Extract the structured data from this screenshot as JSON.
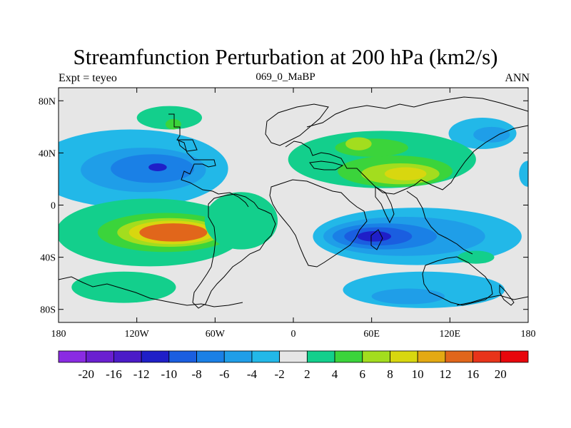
{
  "title": "Streamfunction Perturbation at 200 hPa (km2/s)",
  "left_subtitle": "Expt = teyeo",
  "center_subtitle": "069_0_MaBP",
  "right_subtitle": "ANN",
  "map": {
    "lon_range": [
      -180,
      180
    ],
    "lat_range": [
      -90,
      90
    ],
    "background_color": "#e6e6e6",
    "lat_ticks": [
      {
        "lat": 80,
        "label": "80N"
      },
      {
        "lat": 40,
        "label": "40N"
      },
      {
        "lat": 0,
        "label": "0"
      },
      {
        "lat": -40,
        "label": "40S"
      },
      {
        "lat": -80,
        "label": "80S"
      }
    ],
    "lon_ticks": [
      {
        "lon": -180,
        "label": "180"
      },
      {
        "lon": -120,
        "label": "120W"
      },
      {
        "lon": -60,
        "label": "60W"
      },
      {
        "lon": 0,
        "label": "0"
      },
      {
        "lon": 60,
        "label": "60E"
      },
      {
        "lon": 120,
        "label": "120E"
      },
      {
        "lon": 180,
        "label": "180"
      }
    ],
    "features": [
      {
        "name": "np-high-ridge",
        "lon": -95,
        "lat": 67,
        "rx": 25,
        "ry": 9,
        "level": 4
      },
      {
        "name": "np-high-core",
        "lon": -92,
        "lat": 62,
        "rx": 6,
        "ry": 4,
        "level": 6
      },
      {
        "name": "na-low-outer",
        "lon": -125,
        "lat": 28,
        "rx": 75,
        "ry": 30,
        "level": -4
      },
      {
        "name": "na-low-mid",
        "lon": -115,
        "lat": 27,
        "rx": 48,
        "ry": 17,
        "level": -6
      },
      {
        "name": "na-low-inner",
        "lon": -108,
        "lat": 28,
        "rx": 32,
        "ry": 11,
        "level": -8
      },
      {
        "name": "na-low-core",
        "lon": -104,
        "lat": 29,
        "rx": 7,
        "ry": 3,
        "level": -12
      },
      {
        "name": "asia-low-east",
        "lon": 145,
        "lat": 55,
        "rx": 26,
        "ry": 12,
        "level": -4
      },
      {
        "name": "asia-low-east-core",
        "lon": 152,
        "lat": 54,
        "rx": 14,
        "ry": 6,
        "level": -6
      },
      {
        "name": "dateline-low",
        "lon": 180,
        "lat": 24,
        "rx": 7,
        "ry": 10,
        "level": -4
      },
      {
        "name": "eurasia-high-outer",
        "lon": 68,
        "lat": 35,
        "rx": 72,
        "ry": 22,
        "level": 4
      },
      {
        "name": "eurasia-high-mid",
        "lon": 78,
        "lat": 26,
        "rx": 44,
        "ry": 12,
        "level": 6
      },
      {
        "name": "eurasia-high-north",
        "lon": 60,
        "lat": 44,
        "rx": 28,
        "ry": 7,
        "level": 6
      },
      {
        "name": "eurasia-high-inner",
        "lon": 82,
        "lat": 24,
        "rx": 30,
        "ry": 8,
        "level": 8
      },
      {
        "name": "eurasia-high-core",
        "lon": 86,
        "lat": 24,
        "rx": 16,
        "ry": 5,
        "level": 10
      },
      {
        "name": "europe-high-patch",
        "lon": 50,
        "lat": 47,
        "rx": 10,
        "ry": 5,
        "level": 8
      },
      {
        "name": "sp-high-outer",
        "lon": -110,
        "lat": -21,
        "rx": 72,
        "ry": 26,
        "level": 4
      },
      {
        "name": "sp-high-mid",
        "lon": -98,
        "lat": -21,
        "rx": 52,
        "ry": 15,
        "level": 6
      },
      {
        "name": "sp-high-inner",
        "lon": -95,
        "lat": -21,
        "rx": 40,
        "ry": 11,
        "level": 8
      },
      {
        "name": "sp-high-inner2",
        "lon": -93,
        "lat": -21,
        "rx": 33,
        "ry": 9,
        "level": 10
      },
      {
        "name": "sp-high-core",
        "lon": -92,
        "lat": -21,
        "rx": 26,
        "ry": 7,
        "level": 12
      },
      {
        "name": "atlantic-high-outer",
        "lon": -40,
        "lat": -12,
        "rx": 28,
        "ry": 22,
        "level": 4
      },
      {
        "name": "southern-high-west",
        "lon": -130,
        "lat": -63,
        "rx": 40,
        "ry": 12,
        "level": 4
      },
      {
        "name": "io-low-outer",
        "lon": 95,
        "lat": -24,
        "rx": 80,
        "ry": 22,
        "level": -4
      },
      {
        "name": "io-low-mid",
        "lon": 85,
        "lat": -24,
        "rx": 62,
        "ry": 15,
        "level": -6
      },
      {
        "name": "io-low-inner",
        "lon": 70,
        "lat": -24,
        "rx": 40,
        "ry": 10,
        "level": -8
      },
      {
        "name": "io-low-inner2",
        "lon": 65,
        "lat": -24,
        "rx": 26,
        "ry": 7,
        "level": -10
      },
      {
        "name": "io-low-core",
        "lon": 62,
        "lat": -24,
        "rx": 13,
        "ry": 4,
        "level": -12
      },
      {
        "name": "southern-low-east",
        "lon": 100,
        "lat": -65,
        "rx": 62,
        "ry": 14,
        "level": -4
      },
      {
        "name": "southern-low-east-mid",
        "lon": 88,
        "lat": -70,
        "rx": 28,
        "ry": 6,
        "level": -6
      },
      {
        "name": "southern-high-east",
        "lon": 140,
        "lat": -40,
        "rx": 14,
        "ry": 5,
        "level": 4
      }
    ]
  },
  "colorbar": {
    "colors": [
      "#8a2be2",
      "#6a1fd0",
      "#4b1bc8",
      "#1f1fc8",
      "#1a5ee0",
      "#1a80e6",
      "#1f9ee8",
      "#22b8e8",
      "#e6e6e6",
      "#13cf8c",
      "#3bd43b",
      "#a3dd1e",
      "#d8d70f",
      "#e3a913",
      "#e1661b",
      "#e8341a",
      "#e8060c"
    ],
    "labels": [
      "-20",
      "-16",
      "-12",
      "-10",
      "-8",
      "-6",
      "-4",
      "-2",
      "2",
      "4",
      "6",
      "8",
      "10",
      "12",
      "16",
      "20"
    ],
    "level_colors": {
      "-12": "#1f1fc8",
      "-10": "#1a5ee0",
      "-8": "#1a80e6",
      "-6": "#1f9ee8",
      "-4": "#22b8e8",
      "4": "#13cf8c",
      "6": "#3bd43b",
      "8": "#a3dd1e",
      "10": "#d8d70f",
      "12": "#e1661b"
    }
  }
}
